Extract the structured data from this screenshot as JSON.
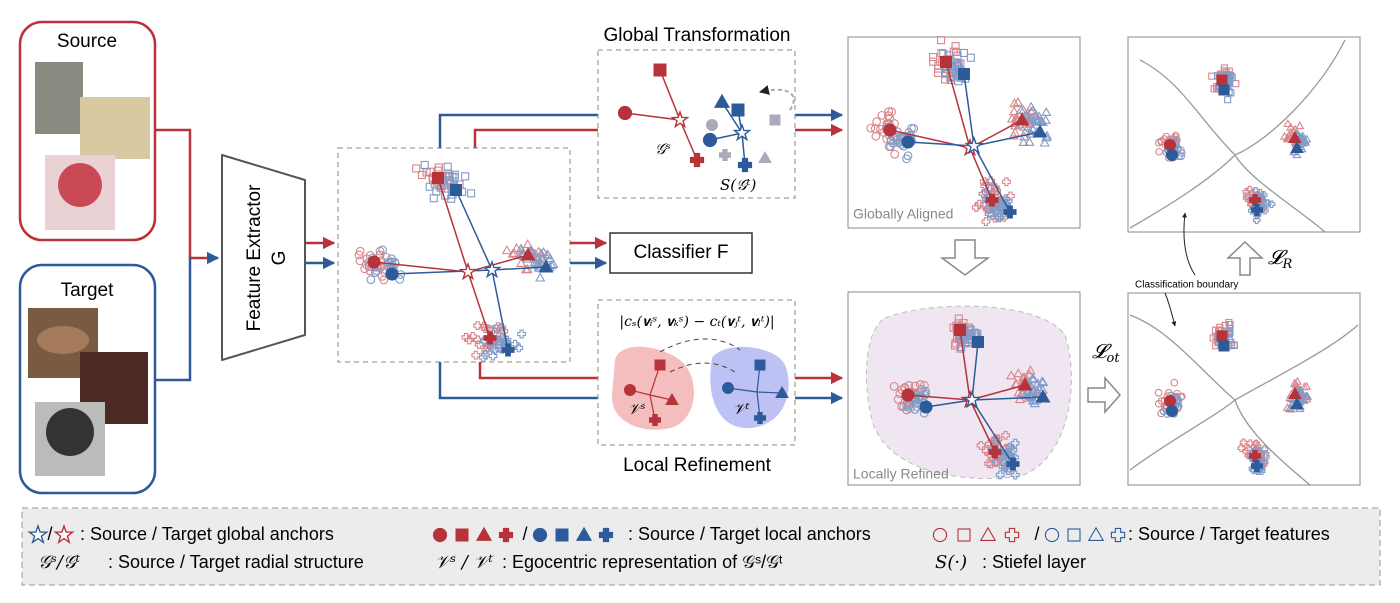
{
  "inputs": {
    "source": "Source",
    "target": "Target"
  },
  "feature_extractor": {
    "line1": "Feature Extractor",
    "line2": "G"
  },
  "global_transformation": {
    "title": "Global Transformation",
    "source_structure": "𝒢ˢ",
    "target_structure": "S(𝒢ᵗ)"
  },
  "classifier": "Classifier F",
  "local_refinement": {
    "title": "Local Refinement",
    "formula": "|cₛ(𝐯ᵢˢ, 𝐯ₖˢ) − cₜ(𝐯ⱼᵗ, 𝐯ₗᵗ)|",
    "source_rep": "𝒱ˢ",
    "target_rep": "𝒱ᵗ"
  },
  "panels": {
    "globally_aligned": "Globally Aligned",
    "locally_refined": "Locally Refined"
  },
  "losses": {
    "ot": {
      "symbol": "𝓛",
      "subscript": "ot"
    },
    "r": {
      "symbol": "𝓛",
      "subscript": "R"
    }
  },
  "annotations": {
    "classification_boundary": "Classification boundary"
  },
  "legend": {
    "separator": "/",
    "items": [
      {
        "text": ": Source / Target global anchors"
      },
      {
        "text": ": Source / Target local anchors"
      },
      {
        "text": ": Source / Target features"
      },
      {
        "key": "𝒢ˢ/𝒢ᵗ",
        "text": ": Source / Target radial structure"
      },
      {
        "key": "𝒱ˢ / 𝒱ᵗ",
        "text": ": Egocentric representation of 𝒢ˢ/𝒢ᵗ"
      },
      {
        "key": "S(·)",
        "text": ": Stiefel layer"
      }
    ]
  }
}
